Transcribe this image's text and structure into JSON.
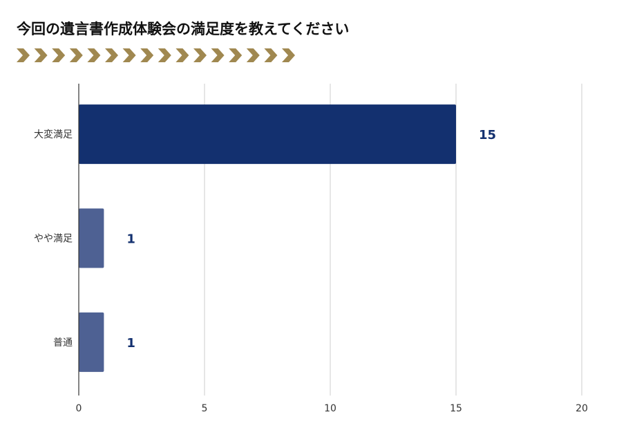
{
  "header": {
    "title": "今回の遺言書作成体験会の満足度を教えてください"
  },
  "decoration": {
    "chevron_icon": "chevron-right-icon",
    "chevron_count": 16,
    "chevron_color": "#a08850"
  },
  "chart_data": {
    "type": "bar",
    "orientation": "horizontal",
    "categories": [
      "大変満足",
      "やや満足",
      "普通"
    ],
    "values": [
      15,
      1,
      1
    ],
    "data_labels": [
      "15",
      "1",
      "1"
    ],
    "xlim": [
      0,
      20
    ],
    "x_ticks": [
      0,
      5,
      10,
      15,
      20
    ],
    "grid": true,
    "bar_colors": [
      "#13306f",
      "#4e6193",
      "#4e6193"
    ],
    "xlabel": "",
    "ylabel": ""
  }
}
